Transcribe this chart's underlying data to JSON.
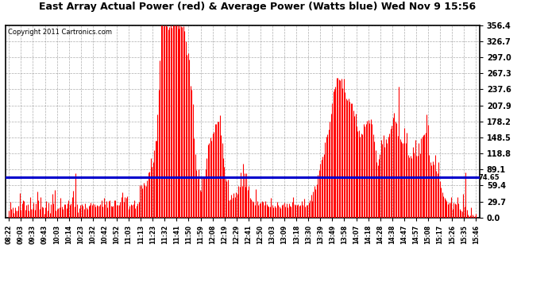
{
  "title": "East Array Actual Power (red) & Average Power (Watts blue) Wed Nov 9 15:56",
  "copyright": "Copyright 2011 Cartronics.com",
  "avg_power": 74.65,
  "yticks": [
    0.0,
    29.7,
    59.4,
    89.1,
    118.8,
    148.5,
    178.2,
    207.9,
    237.6,
    267.3,
    297.0,
    326.7,
    356.4
  ],
  "ymax": 356.4,
  "ymin": 0.0,
  "bar_color": "#ff0000",
  "avg_line_color": "#0000cc",
  "background_color": "#ffffff",
  "grid_color": "#999999",
  "xtick_labels": [
    "08:22",
    "09:03",
    "09:33",
    "09:43",
    "10:03",
    "10:14",
    "10:23",
    "10:32",
    "10:42",
    "10:52",
    "11:03",
    "11:13",
    "11:23",
    "11:32",
    "11:41",
    "11:50",
    "11:59",
    "12:08",
    "12:19",
    "12:29",
    "12:41",
    "12:50",
    "13:03",
    "13:09",
    "13:18",
    "13:30",
    "13:39",
    "13:49",
    "13:58",
    "14:07",
    "14:18",
    "14:28",
    "14:38",
    "14:47",
    "14:57",
    "15:08",
    "15:17",
    "15:26",
    "15:35",
    "15:46"
  ],
  "n_points": 400,
  "figsize": [
    6.9,
    3.75
  ],
  "dpi": 100
}
